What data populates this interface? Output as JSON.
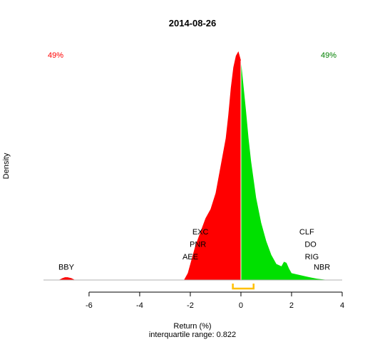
{
  "chart_data": {
    "type": "area",
    "title": "2014-08-26",
    "xlabel": "Return (%)",
    "ylabel": "Density",
    "subtitle": "interquartile range: 0.822",
    "xlim": [
      -7.8,
      4.0
    ],
    "ylim": [
      0,
      1
    ],
    "x_ticks": [
      -6,
      -4,
      -2,
      0,
      2,
      4
    ],
    "x_tick_labels": [
      "-6",
      "-4",
      "-2",
      "0",
      "2",
      "4"
    ],
    "split_at": 0,
    "left_share_label": "49%",
    "right_share_label": "49%",
    "colors": {
      "negative": "#ff0000",
      "positive": "#00e000",
      "iqr": "#ffc000",
      "axis": "#000000",
      "baseline": "#b0b0b0"
    },
    "interquartile_range": {
      "lower": -0.32,
      "upper": 0.5
    },
    "density": {
      "x": [
        -7.2,
        -7.05,
        -6.95,
        -6.85,
        -6.7,
        -6.55,
        -2.25,
        -2.1,
        -2.0,
        -1.9,
        -1.8,
        -1.6,
        -1.4,
        -1.2,
        -1.0,
        -0.8,
        -0.6,
        -0.5,
        -0.4,
        -0.3,
        -0.2,
        -0.1,
        0.0,
        0.1,
        0.2,
        0.3,
        0.4,
        0.5,
        0.6,
        0.8,
        1.0,
        1.2,
        1.4,
        1.6,
        1.7,
        1.8,
        1.9,
        2.0,
        2.2,
        2.4,
        2.6,
        2.8,
        3.0,
        3.2,
        3.45
      ],
      "y": [
        0,
        0.008,
        0.012,
        0.012,
        0.008,
        0,
        0,
        0.03,
        0.07,
        0.11,
        0.15,
        0.21,
        0.27,
        0.31,
        0.38,
        0.5,
        0.62,
        0.72,
        0.84,
        0.93,
        0.98,
        1.0,
        0.96,
        0.85,
        0.74,
        0.62,
        0.52,
        0.44,
        0.36,
        0.25,
        0.17,
        0.11,
        0.07,
        0.06,
        0.08,
        0.075,
        0.05,
        0.03,
        0.025,
        0.02,
        0.015,
        0.01,
        0.006,
        0.003,
        0
      ]
    },
    "labels": [
      {
        "text": "BBY",
        "x": -6.9,
        "y": 0.045
      },
      {
        "text": "AEE",
        "x": -2.0,
        "y": 0.09
      },
      {
        "text": "PNR",
        "x": -1.7,
        "y": 0.145
      },
      {
        "text": "EXC",
        "x": -1.6,
        "y": 0.2
      },
      {
        "text": "CLF",
        "x": 2.6,
        "y": 0.2
      },
      {
        "text": "DO",
        "x": 2.75,
        "y": 0.145
      },
      {
        "text": "RIG",
        "x": 2.8,
        "y": 0.09
      },
      {
        "text": "NBR",
        "x": 3.2,
        "y": 0.045
      }
    ]
  }
}
